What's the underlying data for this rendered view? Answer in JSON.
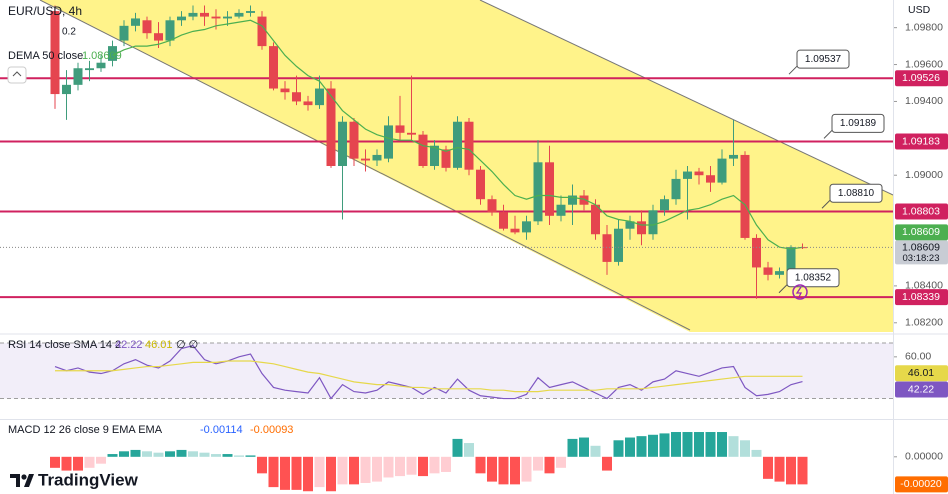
{
  "header": {
    "symbol": "EUR/USD, 4h",
    "legend_value": "0.2",
    "currency": "USD",
    "brand": "TradingView"
  },
  "chart_data": [
    {
      "type": "candlestick",
      "up_color": "#3f9c7c",
      "down_color": "#e5454f",
      "level_color": "#d0215f",
      "open": [
        1.0989,
        1.0944,
        1.0949,
        1.0957,
        1.0958,
        1.0962,
        1.0973,
        1.0981,
        1.0984,
        1.0977,
        1.0973,
        1.0984,
        1.0986,
        1.0988,
        1.0986,
        1.0985,
        1.0986,
        1.0988,
        1.0986,
        1.097,
        1.0947,
        1.0945,
        1.094,
        1.0938,
        1.0947,
        1.0905,
        1.0929,
        1.0909,
        1.0908,
        1.0909,
        1.0927,
        1.0923,
        1.0922,
        1.0905,
        1.0914,
        1.0904,
        1.0929,
        1.0903,
        1.0887,
        1.088,
        1.0871,
        1.0869,
        1.0875,
        1.0907,
        1.0878,
        1.0884,
        1.0889,
        1.0884,
        1.0868,
        1.0853,
        1.0871,
        1.0875,
        1.0868,
        1.0881,
        1.0887,
        1.0898,
        1.0902,
        1.09,
        1.0896,
        1.0909,
        1.0911,
        1.0866,
        1.085,
        1.0846,
        1.0848,
        1.0861
      ],
      "high": [
        1.0992,
        1.0957,
        1.0961,
        1.0962,
        1.0965,
        1.0973,
        1.0984,
        1.0988,
        1.0986,
        1.0983,
        1.0986,
        1.0989,
        1.0992,
        1.0992,
        1.099,
        1.0989,
        1.099,
        1.0992,
        1.0989,
        1.0972,
        1.0951,
        1.0954,
        1.0943,
        1.0954,
        1.0951,
        1.0932,
        1.0931,
        1.0914,
        1.0914,
        1.0932,
        1.0943,
        1.0954,
        1.0924,
        1.0919,
        1.0916,
        1.0932,
        1.0931,
        1.0905,
        1.0889,
        1.0884,
        1.0878,
        1.0878,
        1.0919,
        1.0916,
        1.0889,
        1.0895,
        1.0892,
        1.0887,
        1.0873,
        1.0876,
        1.0878,
        1.0881,
        1.0884,
        1.0889,
        1.0903,
        1.0905,
        1.0904,
        1.0905,
        1.0914,
        1.093,
        1.0913,
        1.0868,
        1.0853,
        1.085,
        1.0862,
        1.0863
      ],
      "low": [
        1.0936,
        1.093,
        1.0946,
        1.0951,
        1.0956,
        1.0959,
        1.097,
        1.0978,
        1.0974,
        1.0969,
        1.097,
        1.0981,
        1.0984,
        1.0981,
        1.0979,
        1.0981,
        1.0985,
        1.0986,
        1.0968,
        1.0946,
        1.0941,
        1.0938,
        1.0935,
        1.0936,
        1.0904,
        1.0876,
        1.0905,
        1.0902,
        1.0905,
        1.0907,
        1.0919,
        1.0919,
        1.0904,
        1.0903,
        1.0902,
        1.0903,
        1.09,
        1.0884,
        1.0878,
        1.087,
        1.0868,
        1.0865,
        1.0873,
        1.0873,
        1.0875,
        1.0873,
        1.0881,
        1.0865,
        1.0846,
        1.0851,
        1.0865,
        1.0862,
        1.0865,
        1.0878,
        1.0884,
        1.0876,
        1.0895,
        1.0891,
        1.0895,
        1.0905,
        1.0865,
        1.0833,
        1.0843,
        1.0844,
        1.0846,
        1.086
      ],
      "close": [
        1.0944,
        1.0949,
        1.0958,
        1.0958,
        1.0961,
        1.097,
        1.0981,
        1.0985,
        1.0977,
        1.0973,
        1.0984,
        1.0986,
        1.0988,
        1.0986,
        1.0985,
        1.0986,
        1.0988,
        1.0989,
        1.097,
        1.0947,
        1.0945,
        1.094,
        1.0938,
        1.0947,
        1.0905,
        1.0929,
        1.0909,
        1.0908,
        1.0911,
        1.0927,
        1.0923,
        1.0922,
        1.0905,
        1.0916,
        1.0904,
        1.0929,
        1.0903,
        1.0887,
        1.088,
        1.0871,
        1.0869,
        1.0875,
        1.0907,
        1.0878,
        1.0884,
        1.0889,
        1.0884,
        1.0868,
        1.0853,
        1.0871,
        1.0875,
        1.0868,
        1.0881,
        1.0887,
        1.0898,
        1.0902,
        1.09,
        1.0896,
        1.0909,
        1.0911,
        1.0866,
        1.085,
        1.0846,
        1.0848,
        1.0861,
        1.08609
      ],
      "series": [
        {
          "name": "DEMA 50 close",
          "color": "#4caf50",
          "values": [
            null,
            null,
            null,
            null,
            null,
            1.0965,
            1.0968,
            1.097,
            1.097,
            1.0971,
            1.0973,
            1.0976,
            1.0978,
            1.0979,
            1.0981,
            1.0982,
            1.0983,
            1.0984,
            1.0981,
            1.0973,
            1.0965,
            1.0959,
            1.0954,
            1.0951,
            1.0943,
            1.0935,
            1.093,
            1.0925,
            1.0922,
            1.092,
            1.0919,
            1.0919,
            1.0916,
            1.0915,
            1.0913,
            1.0915,
            1.0914,
            1.0908,
            1.0902,
            1.0895,
            1.0889,
            1.0887,
            1.0889,
            1.0889,
            1.0888,
            1.0888,
            1.0887,
            1.0884,
            1.0878,
            1.0876,
            1.0875,
            1.0873,
            1.0873,
            1.0875,
            1.0878,
            1.0881,
            1.0882,
            1.0884,
            1.0887,
            1.0889,
            1.0884,
            1.0873,
            1.0865,
            1.0861,
            1.086,
            1.08609
          ]
        }
      ],
      "ylim": [
        1.0815,
        1.0995
      ],
      "yticks": [
        {
          "value": 1.098,
          "label": "1.09800"
        },
        {
          "value": 1.096,
          "label": "1.09600"
        },
        {
          "value": 1.094,
          "label": "1.09400"
        },
        {
          "value": 1.09,
          "label": "1.09000"
        },
        {
          "value": 1.084,
          "label": "1.08400"
        },
        {
          "value": 1.082,
          "label": "1.08200"
        }
      ],
      "levels": [
        1.09526,
        1.09183,
        1.08803,
        1.08339
      ],
      "callouts": [
        1.09537,
        1.09189,
        {
          "value": 1.0881,
          "label": "1.08810"
        },
        1.08352
      ],
      "countdown": "03:18:23"
    },
    {
      "type": "line",
      "title": "RSI 14 close SMA 14 2",
      "legend_extra": "∅ ∅",
      "ylim": [
        16,
        75
      ],
      "yticks": [
        {
          "value": 60,
          "label": "60.00"
        }
      ],
      "band": [
        30,
        70
      ],
      "series": [
        {
          "color": "#7e57c2",
          "values": [
            53,
            50,
            52,
            49,
            48,
            50,
            55,
            58,
            54,
            52,
            57,
            66,
            68,
            58,
            55,
            57,
            60,
            62,
            48,
            38,
            36,
            35,
            34,
            45,
            30,
            40,
            35,
            34,
            36,
            42,
            40,
            38,
            33,
            38,
            34,
            44,
            36,
            32,
            31,
            30,
            30,
            33,
            45,
            38,
            40,
            42,
            38,
            34,
            30,
            38,
            40,
            36,
            42,
            44,
            50,
            48,
            46,
            49,
            52,
            53,
            38,
            32,
            33,
            35,
            40,
            42.22
          ]
        },
        {
          "color": "#e6d84a",
          "values": [
            50,
            50,
            50,
            50,
            50,
            50,
            51,
            52,
            53,
            53,
            54,
            55,
            56,
            56,
            56,
            57,
            57,
            57,
            56,
            55,
            53,
            51,
            49,
            48,
            46,
            44,
            42,
            41,
            40,
            40,
            39,
            38,
            38,
            37,
            37,
            37,
            37,
            37,
            36,
            36,
            35,
            35,
            35,
            36,
            36,
            36,
            36,
            36,
            37,
            37,
            37,
            37,
            38,
            39,
            40,
            41,
            42,
            43,
            44,
            45,
            46,
            46,
            46,
            46,
            46,
            46.01
          ]
        }
      ]
    },
    {
      "type": "bar",
      "title": "MACD 12 26 close 9 EMA EMA",
      "legend_values": [
        -0.00114,
        -0.00093
      ],
      "legend_colors": [
        "#2962ff",
        "#ff6d00"
      ],
      "colors": {
        "rise_above": "#26a69a",
        "fall_above": "#b2dfdb",
        "fall_below": "#ff5252",
        "rise_below": "#ffcdd2"
      },
      "ylim": [
        -0.00027,
        0.00026
      ],
      "yticks": [
        {
          "value": 0,
          "label": "0.00000"
        }
      ],
      "values": [
        -8e-05,
        -0.0001,
        -0.0001,
        -8e-05,
        -5e-05,
        2e-05,
        4e-05,
        5e-05,
        4e-05,
        3e-05,
        4e-05,
        5e-05,
        4e-05,
        3e-05,
        2e-05,
        2e-05,
        1e-05,
        1e-05,
        -0.00012,
        -0.00022,
        -0.00024,
        -0.00024,
        -0.00025,
        -0.00022,
        -0.00025,
        -0.0002,
        -0.0002,
        -0.00019,
        -0.00018,
        -0.00015,
        -0.00014,
        -0.00013,
        -0.00014,
        -0.00012,
        -0.00011,
        0.00013,
        0.0001,
        -0.00012,
        -0.00018,
        -0.0002,
        -0.0002,
        -0.00018,
        -0.0001,
        -0.00012,
        -8e-05,
        0.00013,
        0.00014,
        8e-05,
        -0.0001,
        0.00012,
        0.00014,
        0.00015,
        0.00016,
        0.00017,
        0.00018,
        0.00018,
        0.00018,
        0.00018,
        0.00018,
        0.00015,
        0.00012,
        5e-05,
        -0.00016,
        -0.00018,
        -0.0002,
        -0.0002
      ],
      "value_labels": [
        null,
        null,
        null,
        null,
        null,
        null,
        null,
        null,
        null,
        null,
        null,
        null,
        null,
        null,
        null,
        null,
        null,
        null,
        null,
        null,
        null,
        null,
        null,
        null,
        null,
        null,
        null,
        null,
        null,
        null,
        null,
        null,
        null,
        null,
        null,
        null,
        null,
        null,
        null,
        null,
        null,
        null,
        null,
        null,
        null,
        null,
        null,
        null,
        null,
        null,
        null,
        null,
        null,
        null,
        null,
        null,
        null,
        null,
        null,
        null,
        null,
        null,
        null,
        null,
        null,
        "-0.00020"
      ]
    }
  ]
}
